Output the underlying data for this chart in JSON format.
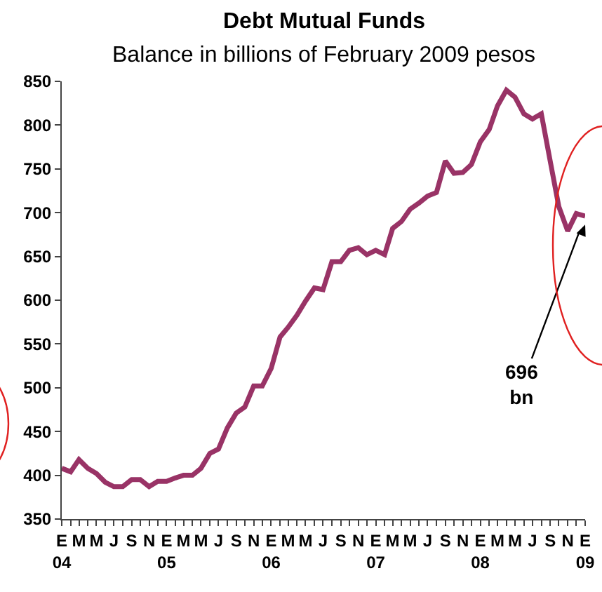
{
  "chart_data": {
    "type": "line",
    "title": "Debt Mutual Funds",
    "subtitle": "Balance in billions of February 2009 pesos",
    "x": [
      "2004-01",
      "2004-02",
      "2004-03",
      "2004-04",
      "2004-05",
      "2004-06",
      "2004-07",
      "2004-08",
      "2004-09",
      "2004-10",
      "2004-11",
      "2004-12",
      "2005-01",
      "2005-02",
      "2005-03",
      "2005-04",
      "2005-05",
      "2005-06",
      "2005-07",
      "2005-08",
      "2005-09",
      "2005-10",
      "2005-11",
      "2005-12",
      "2006-01",
      "2006-02",
      "2006-03",
      "2006-04",
      "2006-05",
      "2006-06",
      "2006-07",
      "2006-08",
      "2006-09",
      "2006-10",
      "2006-11",
      "2006-12",
      "2007-01",
      "2007-02",
      "2007-03",
      "2007-04",
      "2007-05",
      "2007-06",
      "2007-07",
      "2007-08",
      "2007-09",
      "2007-10",
      "2007-11",
      "2007-12",
      "2008-01",
      "2008-02",
      "2008-03",
      "2008-04",
      "2008-05",
      "2008-06",
      "2008-07",
      "2008-08",
      "2008-09",
      "2008-10",
      "2008-11",
      "2008-12",
      "2009-01"
    ],
    "series": [
      {
        "color": "#993366",
        "values": [
          408,
          404,
          418,
          408,
          402,
          392,
          387,
          387,
          395,
          395,
          387,
          393,
          393,
          397,
          400,
          400,
          408,
          425,
          430,
          454,
          471,
          478,
          502,
          502,
          522,
          558,
          569,
          583,
          599,
          614,
          612,
          644,
          644,
          657,
          660,
          652,
          657,
          652,
          682,
          690,
          704,
          711,
          719,
          723,
          759,
          745,
          746,
          755,
          781,
          795,
          822,
          840,
          832,
          813,
          807,
          813,
          759,
          707,
          679,
          699,
          696
        ]
      }
    ],
    "ylim": [
      350,
      850
    ],
    "yticks": [
      350,
      400,
      450,
      500,
      550,
      600,
      650,
      700,
      750,
      800,
      850
    ],
    "xlim": [
      "2004-01",
      "2009-01"
    ],
    "xticks": [
      {
        "value": "2004-01",
        "label": "E\n04"
      },
      {
        "value": "2004-03",
        "label": "M"
      },
      {
        "value": "2004-05",
        "label": "M"
      },
      {
        "value": "2004-07",
        "label": "J"
      },
      {
        "value": "2004-09",
        "label": "S"
      },
      {
        "value": "2004-11",
        "label": "N"
      },
      {
        "value": "2005-01",
        "label": "E\n05"
      },
      {
        "value": "2005-03",
        "label": "M"
      },
      {
        "value": "2005-05",
        "label": "M"
      },
      {
        "value": "2005-07",
        "label": "J"
      },
      {
        "value": "2005-09",
        "label": "S"
      },
      {
        "value": "2005-11",
        "label": "N"
      },
      {
        "value": "2006-01",
        "label": "E\n06"
      },
      {
        "value": "2006-03",
        "label": "M"
      },
      {
        "value": "2006-05",
        "label": "M"
      },
      {
        "value": "2006-07",
        "label": "J"
      },
      {
        "value": "2006-09",
        "label": "S"
      },
      {
        "value": "2006-11",
        "label": "N"
      },
      {
        "value": "2007-01",
        "label": "E\n07"
      },
      {
        "value": "2007-03",
        "label": "M"
      },
      {
        "value": "2007-05",
        "label": "M"
      },
      {
        "value": "2007-07",
        "label": "J"
      },
      {
        "value": "2007-09",
        "label": "S"
      },
      {
        "value": "2007-11",
        "label": "N"
      },
      {
        "value": "2008-01",
        "label": "E\n08"
      },
      {
        "value": "2008-03",
        "label": "M"
      },
      {
        "value": "2008-05",
        "label": "M"
      },
      {
        "value": "2008-07",
        "label": "J"
      },
      {
        "value": "2008-09",
        "label": "S"
      },
      {
        "value": "2008-11",
        "label": "N"
      },
      {
        "value": "2009-01",
        "label": "E\n09"
      }
    ],
    "annotations": [
      {
        "text": "696\nbn",
        "x": "2009-01",
        "y": 696
      }
    ],
    "grid": false,
    "legend": false,
    "marker": "none",
    "line_style": "solid"
  }
}
